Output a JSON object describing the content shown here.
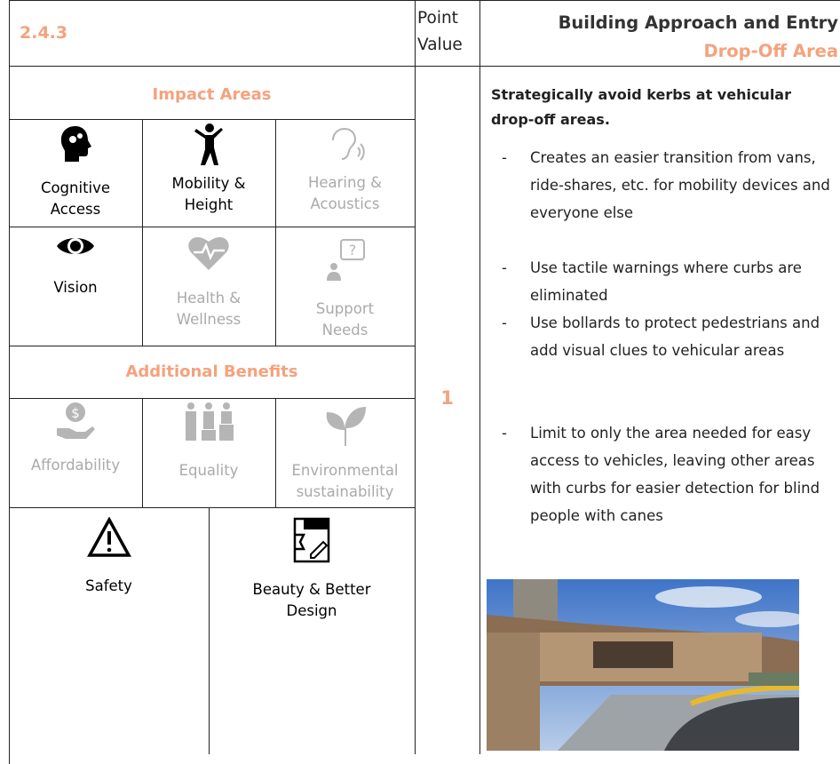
{
  "header": {
    "section": "2.4.3",
    "point_value_label": "Point Value",
    "title": "Building Approach and Entry",
    "subtitle": "Drop-Off Area"
  },
  "impact_areas": {
    "heading": "Impact Areas",
    "items": [
      {
        "label": "Cognitive Access",
        "active": true
      },
      {
        "label": "Mobility & Height",
        "active": true
      },
      {
        "label": "Hearing & Acoustics",
        "active": false
      },
      {
        "label": "Vision",
        "active": true
      },
      {
        "label": "Health & Wellness",
        "active": false
      },
      {
        "label": "Support Needs",
        "active": false
      }
    ]
  },
  "additional_benefits": {
    "heading": "Additional Benefits",
    "items": [
      {
        "label": "Affordability",
        "active": false
      },
      {
        "label": "Equality",
        "active": false
      },
      {
        "label": "Environmental sustainability",
        "active": false
      }
    ]
  },
  "other_benefits": [
    {
      "label": "Safety",
      "active": true
    },
    {
      "label": "Beauty & Better Design",
      "active": true
    }
  ],
  "point_value": 1,
  "description": {
    "heading": "Strategically avoid kerbs at vehicular drop-off areas.",
    "bullets": [
      "Creates an easier transition from vans, ride-shares, etc. for mobility devices and everyone else",
      "Use tactile warnings where curbs are eliminated",
      "Use bollards to protect pedestrians and add visual clues to vehicular areas",
      "Limit to only the area needed for easy access to vehicles, leaving other areas with curbs for easier detection for blind people with canes"
    ]
  }
}
